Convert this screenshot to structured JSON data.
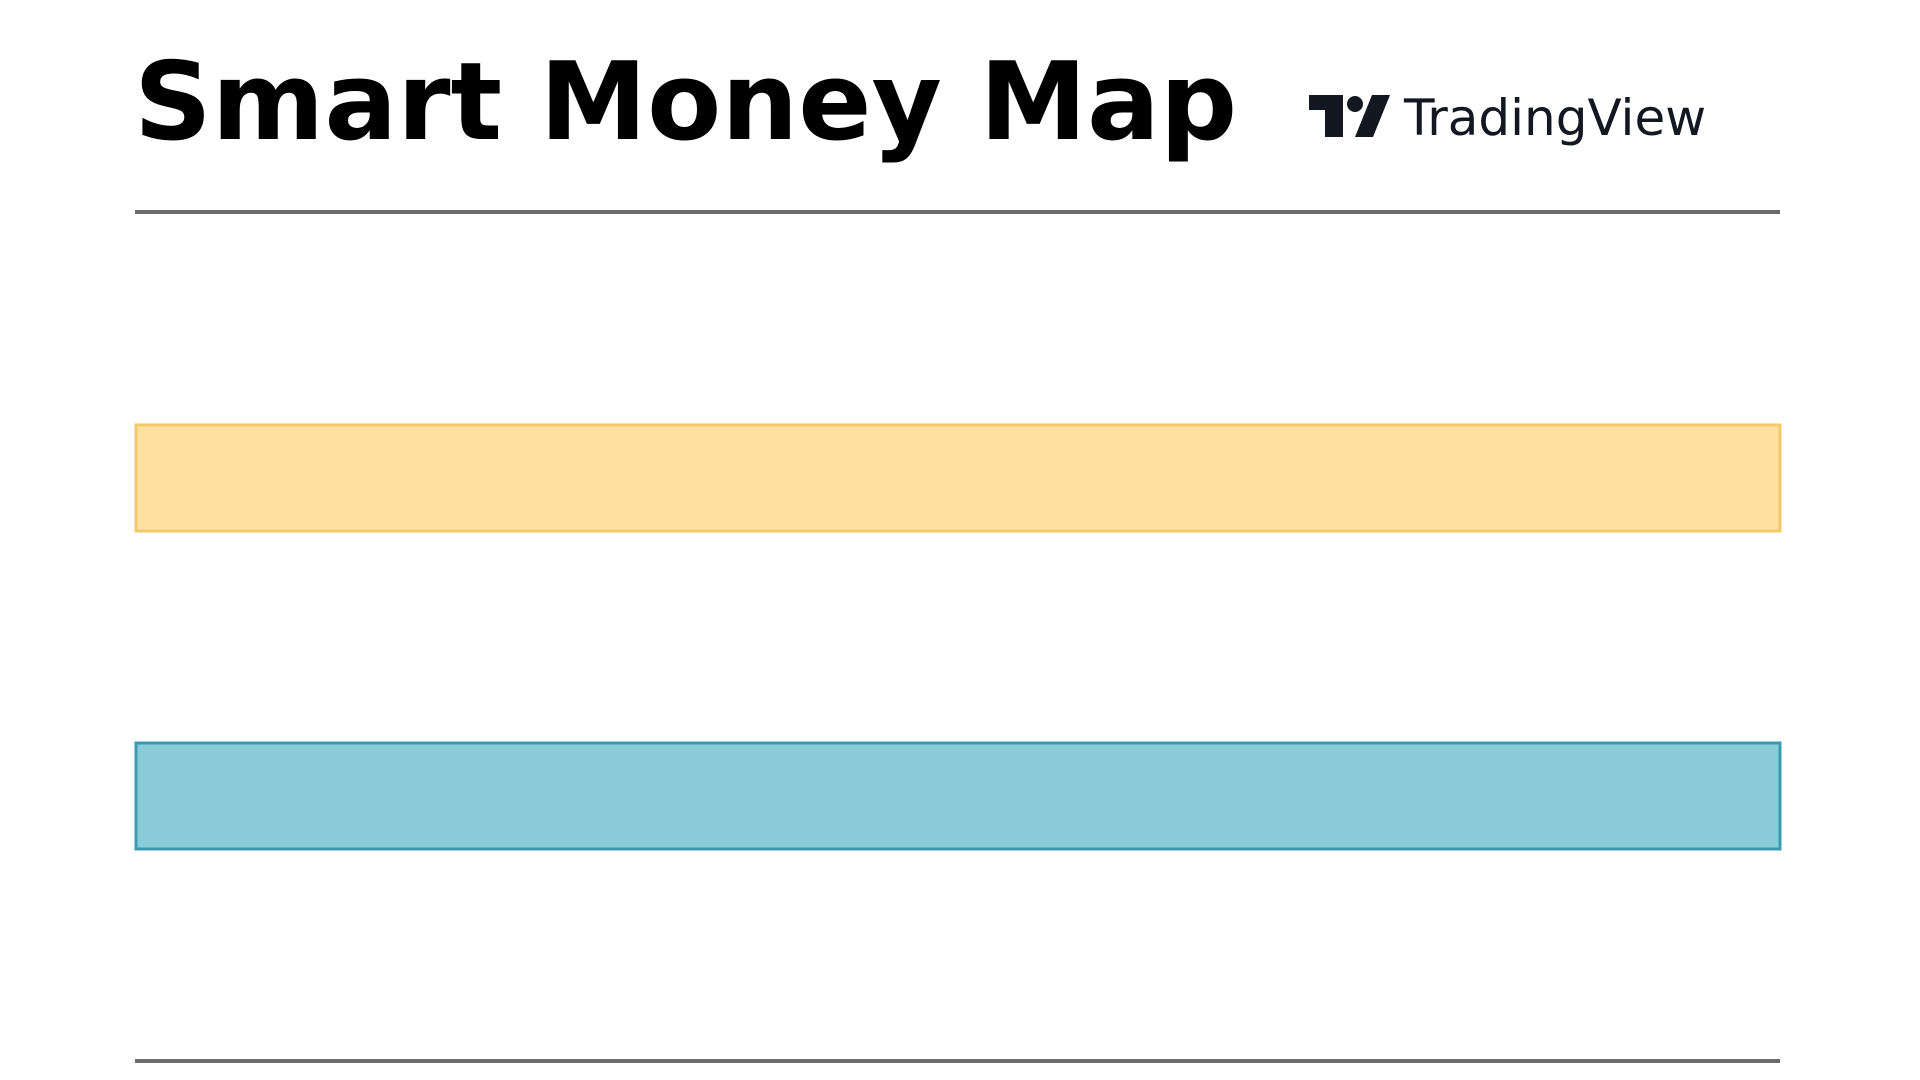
{
  "header": {
    "title": "Smart Money Map",
    "brand": "TradingView"
  }
}
